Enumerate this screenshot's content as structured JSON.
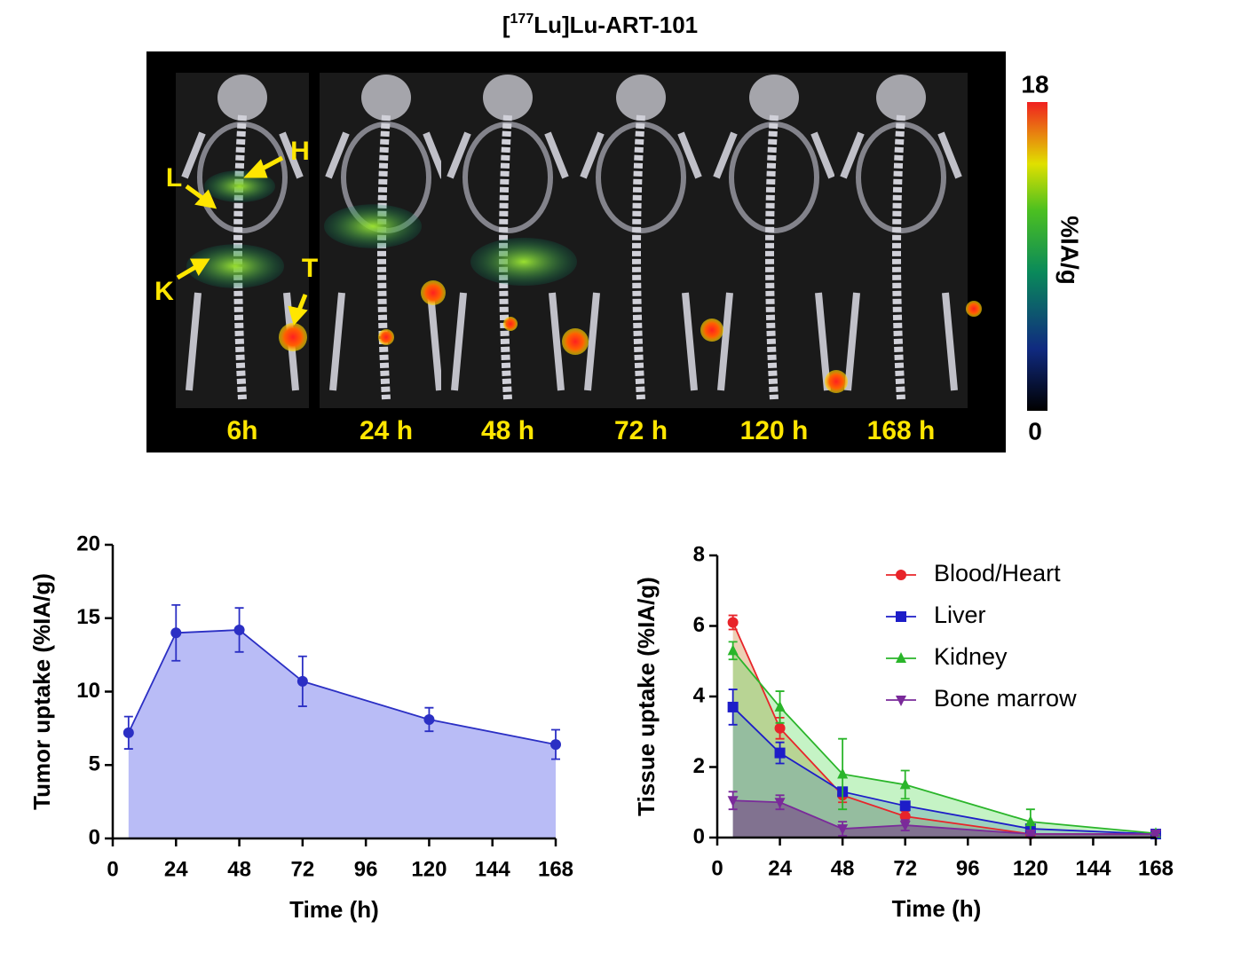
{
  "image_panel": {
    "title_parts": [
      "[",
      "177",
      "Lu]Lu-ART-101"
    ],
    "time_labels": [
      "6h",
      "24 h",
      "48 h",
      "72 h",
      "120 h",
      "168 h"
    ],
    "organ_labels": [
      "H",
      "L",
      "K",
      "T"
    ],
    "colorbar": {
      "max": 18,
      "min": 0,
      "unit": "%IA/g"
    }
  },
  "chart_data": [
    {
      "type": "line",
      "area": true,
      "x_label": "Time (h)",
      "y_label": "Tumor uptake (%IA/g)",
      "xlim": [
        0,
        168
      ],
      "xticks": [
        0,
        24,
        48,
        72,
        96,
        120,
        144,
        168
      ],
      "ylim": [
        0,
        20
      ],
      "yticks": [
        0,
        5,
        10,
        15,
        20
      ],
      "x": [
        6,
        24,
        48,
        72,
        120,
        168
      ],
      "series": [
        {
          "color": "#2b2fc4",
          "fill": "#b9bcf6",
          "marker": "circle",
          "values": [
            7.2,
            14.0,
            14.2,
            10.7,
            8.1,
            6.4
          ],
          "errors": [
            1.1,
            1.9,
            1.5,
            1.7,
            0.8,
            1.0
          ]
        }
      ]
    },
    {
      "type": "line",
      "area": true,
      "x_label": "Time (h)",
      "y_label": "Tissue uptake (%IA/g)",
      "xlim": [
        0,
        168
      ],
      "xticks": [
        0,
        24,
        48,
        72,
        96,
        120,
        144,
        168
      ],
      "ylim": [
        0,
        8
      ],
      "yticks": [
        0,
        2,
        4,
        6,
        8
      ],
      "x": [
        6,
        24,
        48,
        72,
        120,
        168
      ],
      "series": [
        {
          "name": "Blood/Heart",
          "color": "#e8242a",
          "fill": "rgba(200,120,40,0.35)",
          "marker": "circle",
          "values": [
            6.1,
            3.1,
            1.2,
            0.6,
            0.1,
            0.1
          ],
          "errors": [
            0.2,
            0.3,
            0.2,
            0.15,
            0.05,
            0.05
          ]
        },
        {
          "name": "Liver",
          "color": "#1d1dc8",
          "fill": "rgba(80,110,230,0.35)",
          "marker": "square",
          "values": [
            3.7,
            2.4,
            1.3,
            0.9,
            0.25,
            0.1
          ],
          "errors": [
            0.5,
            0.3,
            0.1,
            0.1,
            0.1,
            0.05
          ]
        },
        {
          "name": "Kidney",
          "color": "#2ab52a",
          "fill": "rgba(90,220,90,0.35)",
          "marker": "triangle-up",
          "values": [
            5.3,
            3.7,
            1.8,
            1.5,
            0.45,
            0.12
          ],
          "errors": [
            0.25,
            0.45,
            1.0,
            0.4,
            0.35,
            0.05
          ]
        },
        {
          "name": "Bone marrow",
          "color": "#7a2a9a",
          "fill": "rgba(110,40,130,0.5)",
          "marker": "triangle-down",
          "values": [
            1.05,
            1.0,
            0.25,
            0.35,
            0.1,
            0.1
          ],
          "errors": [
            0.25,
            0.2,
            0.2,
            0.15,
            0.05,
            0.05
          ]
        }
      ]
    }
  ]
}
